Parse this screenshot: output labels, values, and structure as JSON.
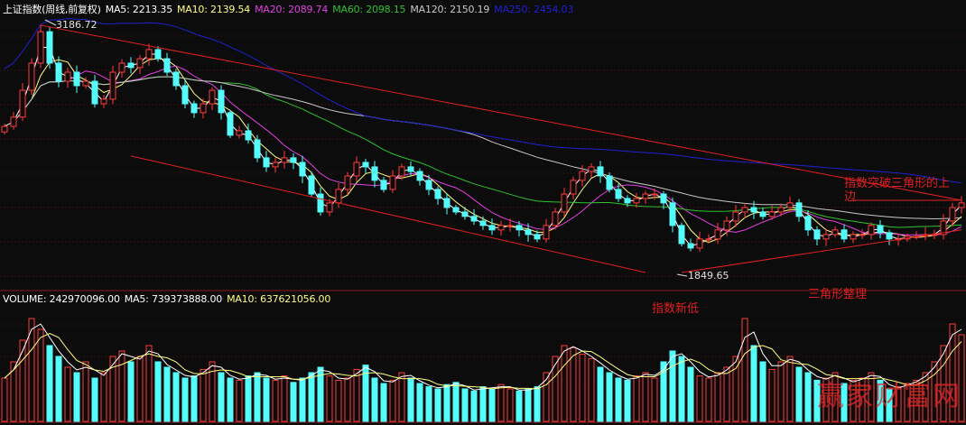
{
  "header": {
    "title": "上证指数(周线,前复权)",
    "ma5": "MA5: 2213.35",
    "ma10": "MA10: 2139.54",
    "ma20": "MA20: 2089.74",
    "ma60": "MA60: 2098.15",
    "ma120": "MA120: 2150.19",
    "ma250": "MA250: 2454.03"
  },
  "volume_header": {
    "volume": "VOLUME: 242970096.00",
    "ma5": "MA5: 739373888.00",
    "ma10": "MA10: 637621056.00"
  },
  "colors": {
    "background": "#0c0c0c",
    "up": "#ff3c3c",
    "down": "#54fcfc",
    "ma5": "#ffffff",
    "ma10": "#ffff80",
    "ma20": "#e040e0",
    "ma60": "#30c030",
    "ma120": "#c8c8c8",
    "ma250": "#2020d0",
    "trendline": "#e02020"
  },
  "annotations": {
    "high": "3186.72",
    "low": "1849.65",
    "new_low": "指数新低",
    "triangle": "三角形整理",
    "breakout_line1": "指数突破三角形的上",
    "breakout_line2": "边"
  },
  "watermark": "赢家财富网",
  "chart_data": {
    "type": "candlestick",
    "period": "weekly",
    "price_range": [
      1849.65,
      3186.72
    ],
    "closes": [
      2640,
      2690,
      2835,
      2982,
      3152,
      2982,
      2884,
      2933,
      2860,
      2884,
      2762,
      2787,
      2933,
      2982,
      2958,
      3006,
      3055,
      3006,
      2933,
      2860,
      2762,
      2714,
      2762,
      2835,
      2714,
      2592,
      2616,
      2567,
      2470,
      2421,
      2445,
      2470,
      2445,
      2372,
      2274,
      2177,
      2226,
      2299,
      2372,
      2445,
      2421,
      2348,
      2299,
      2372,
      2421,
      2396,
      2348,
      2299,
      2250,
      2201,
      2177,
      2153,
      2128,
      2104,
      2080,
      2104,
      2104,
      2080,
      2055,
      2031,
      2104,
      2177,
      2274,
      2348,
      2396,
      2421,
      2372,
      2299,
      2250,
      2226,
      2250,
      2274,
      2274,
      2226,
      2104,
      2006,
      1982,
      2031,
      2031,
      2080,
      2128,
      2177,
      2201,
      2177,
      2153,
      2177,
      2201,
      2226,
      2153,
      2080,
      2031,
      2055,
      2080,
      2031,
      2055,
      2055,
      2104,
      2065,
      2031,
      2031,
      2045,
      2045,
      2055,
      2055,
      2128,
      2201,
      2226
    ],
    "volume_relative": [
      40,
      55,
      75,
      95,
      85,
      70,
      60,
      50,
      45,
      55,
      40,
      45,
      60,
      65,
      55,
      60,
      70,
      55,
      50,
      45,
      40,
      42,
      48,
      55,
      45,
      40,
      38,
      42,
      45,
      40,
      38,
      42,
      36,
      40,
      45,
      50,
      42,
      38,
      40,
      48,
      52,
      40,
      35,
      38,
      45,
      40,
      35,
      32,
      30,
      34,
      36,
      30,
      28,
      32,
      30,
      34,
      30,
      28,
      30,
      32,
      45,
      60,
      70,
      68,
      62,
      58,
      50,
      45,
      40,
      38,
      42,
      45,
      40,
      55,
      65,
      60,
      50,
      42,
      40,
      45,
      50,
      60,
      95,
      70,
      55,
      48,
      55,
      60,
      50,
      45,
      38,
      40,
      45,
      35,
      38,
      40,
      45,
      38,
      30,
      32,
      35,
      38,
      45,
      55,
      70,
      90,
      80
    ],
    "trendlines": [
      {
        "from": [
          4,
          3186.72
        ],
        "to": [
          106,
          2240
        ]
      },
      {
        "from": [
          14,
          2480
        ],
        "to": [
          71,
          1849.65
        ]
      },
      {
        "from": [
          75,
          1849.65
        ],
        "to": [
          106,
          2080
        ]
      },
      {
        "from": [
          94,
          2240
        ],
        "to": [
          106,
          2240
        ]
      }
    ],
    "moving_averages": [
      "MA5",
      "MA10",
      "MA20",
      "MA60",
      "MA120",
      "MA250"
    ],
    "grid": "horizontal dotted"
  }
}
